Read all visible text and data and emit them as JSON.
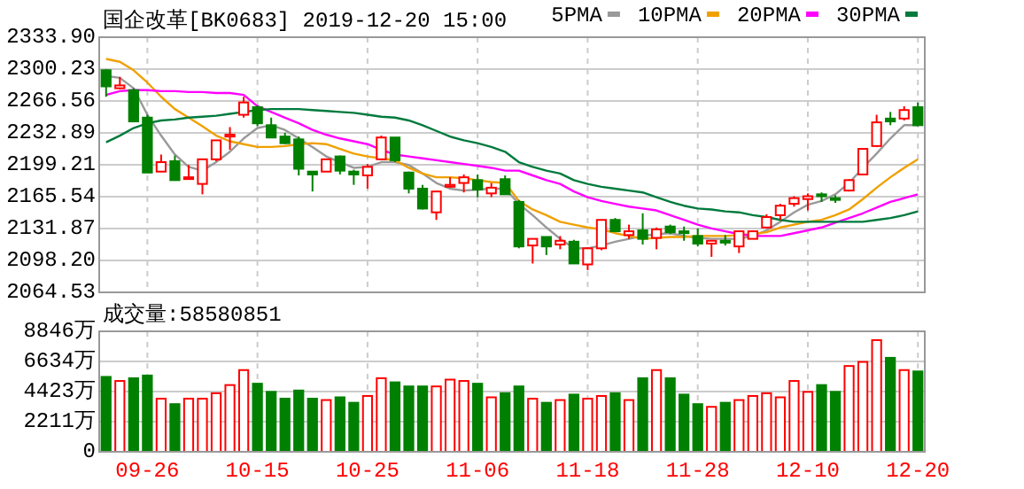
{
  "chart_data": [
    {
      "type": "candlestick",
      "title": "国企改革[BK0683] 2019-12-20 15:00",
      "legend": "top right",
      "grid": true,
      "tick_labels": "y",
      "categories": [
        null,
        null,
        null,
        null,
        null,
        null,
        null,
        null,
        null,
        null,
        null,
        null,
        null,
        null,
        null,
        null,
        null,
        null,
        null,
        null,
        null,
        null,
        null,
        null,
        null,
        null,
        null,
        null,
        null,
        null,
        null,
        null,
        null,
        null,
        null,
        null,
        null,
        null,
        null,
        null,
        null,
        null,
        null,
        null,
        null,
        null,
        null,
        null,
        null,
        null,
        null,
        null,
        null,
        null,
        null,
        null,
        null,
        null,
        null,
        null
      ],
      "ylim": [
        2064.53,
        2333.9
      ],
      "yticks": [
        {
          "value": 2333.9,
          "label": "2333.90"
        },
        2300.23,
        2266.56,
        2232.89,
        2199.21,
        2165.54,
        2131.87,
        {
          "value": 2098.2,
          "label": "2098.20"
        },
        2064.53
      ],
      "ohlc": [
        [
          2299,
          2300,
          2271,
          2282
        ],
        [
          2280,
          2292,
          2279,
          2283
        ],
        [
          2278,
          2280,
          2245,
          2245
        ],
        [
          2249,
          2252,
          2191,
          2191
        ],
        [
          2192,
          2210,
          2192,
          2202
        ],
        [
          2203,
          2209,
          2183,
          2183
        ],
        [
          2185,
          2199,
          2185,
          2186
        ],
        [
          2179,
          2205,
          2168,
          2205
        ],
        [
          2205,
          2225,
          2203,
          2225
        ],
        [
          2229,
          2239,
          2215,
          2231
        ],
        [
          2252,
          2271,
          2249,
          2265
        ],
        [
          2260,
          2262,
          2240,
          2243
        ],
        [
          2241,
          2249,
          2228,
          2228
        ],
        [
          2229,
          2233,
          2221,
          2222
        ],
        [
          2226,
          2229,
          2188,
          2195
        ],
        [
          2192,
          2192,
          2171,
          2189
        ],
        [
          2192,
          2205,
          2192,
          2205
        ],
        [
          2208,
          2209,
          2189,
          2193
        ],
        [
          2192,
          2194,
          2178,
          2189
        ],
        [
          2188,
          2200,
          2174,
          2197
        ],
        [
          2205,
          2230,
          2204,
          2228
        ],
        [
          2228,
          2228,
          2202,
          2204
        ],
        [
          2191,
          2192,
          2169,
          2174
        ],
        [
          2174,
          2178,
          2152,
          2153
        ],
        [
          2149,
          2172,
          2141,
          2171
        ],
        [
          2176,
          2186,
          2175,
          2178
        ],
        [
          2180,
          2189,
          2170,
          2186
        ],
        [
          2183,
          2189,
          2165,
          2173
        ],
        [
          2169,
          2180,
          2165,
          2175
        ],
        [
          2184,
          2188,
          2168,
          2168
        ],
        [
          2160,
          2162,
          2111,
          2113
        ],
        [
          2114,
          2121,
          2095,
          2121
        ],
        [
          2123,
          2123,
          2104,
          2113
        ],
        [
          2115,
          2124,
          2110,
          2119
        ],
        [
          2118,
          2120,
          2095,
          2095
        ],
        [
          2094,
          2112,
          2088,
          2111
        ],
        [
          2111,
          2141,
          2109,
          2141
        ],
        [
          2141,
          2143,
          2129,
          2129
        ],
        [
          2125,
          2136,
          2121,
          2129
        ],
        [
          2130,
          2148,
          2115,
          2121
        ],
        [
          2122,
          2133,
          2110,
          2131
        ],
        [
          2134,
          2136,
          2126,
          2128
        ],
        [
          2129,
          2134,
          2119,
          2127
        ],
        [
          2124,
          2132,
          2113,
          2116
        ],
        [
          2116,
          2119,
          2102,
          2119
        ],
        [
          2119,
          2125,
          2114,
          2117
        ],
        [
          2113,
          2130,
          2106,
          2129
        ],
        [
          2121,
          2130,
          2121,
          2129
        ],
        [
          2133,
          2147,
          2132,
          2144
        ],
        [
          2146,
          2158,
          2141,
          2156
        ],
        [
          2158,
          2166,
          2155,
          2164
        ],
        [
          2163,
          2169,
          2151,
          2166
        ],
        [
          2168,
          2170,
          2160,
          2166
        ],
        [
          2164,
          2167,
          2159,
          2163
        ],
        [
          2172,
          2184,
          2171,
          2183
        ],
        [
          2189,
          2216,
          2188,
          2216
        ],
        [
          2219,
          2252,
          2218,
          2244
        ],
        [
          2248,
          2255,
          2241,
          2245
        ],
        [
          2248,
          2261,
          2246,
          2257
        ],
        [
          2260,
          2265,
          2240,
          2241
        ]
      ],
      "colors": [
        "#008000",
        "#ff0000",
        "#008000",
        "#008000",
        "#ff0000",
        "#008000",
        "#ff0000",
        "#ff0000",
        "#ff0000",
        "#ff0000",
        "#ff0000",
        "#008000",
        "#008000",
        "#008000",
        "#008000",
        "#008000",
        "#ff0000",
        "#008000",
        "#008000",
        "#ff0000",
        "#ff0000",
        "#008000",
        "#008000",
        "#008000",
        "#ff0000",
        "#ff0000",
        "#ff0000",
        "#008000",
        "#ff0000",
        "#008000",
        "#008000",
        "#ff0000",
        "#008000",
        "#ff0000",
        "#008000",
        "#ff0000",
        "#ff0000",
        "#008000",
        "#ff0000",
        "#008000",
        "#ff0000",
        "#008000",
        "#008000",
        "#008000",
        "#ff0000",
        "#008000",
        "#ff0000",
        "#ff0000",
        "#ff0000",
        "#ff0000",
        "#ff0000",
        "#ff0000",
        "#008000",
        "#008000",
        "#ff0000",
        "#ff0000",
        "#ff0000",
        "#008000",
        "#ff0000",
        "#008000"
      ],
      "series": [
        {
          "type": "line",
          "name": "5PMA",
          "color": "#999999",
          "values": [
            2293,
            2291,
            2280,
            2252,
            2230,
            2210,
            2197,
            2193,
            2202,
            2213,
            2227,
            2238,
            2241,
            2236,
            2227,
            2218,
            2208,
            2202,
            2196,
            2197,
            2202,
            2202,
            2199,
            2190,
            2180,
            2174,
            2172,
            2173,
            2174,
            2174,
            2158,
            2146,
            2133,
            2121,
            2111,
            2111,
            2114,
            2118,
            2121,
            2124,
            2126,
            2127,
            2124,
            2122,
            2121,
            2121,
            2121,
            2124,
            2130,
            2139,
            2149,
            2157,
            2161,
            2168,
            2180,
            2196,
            2211,
            2227,
            2241,
            2241
          ]
        },
        {
          "type": "line",
          "name": "10PMA",
          "color": "#f0a000",
          "values": [
            2311,
            2308,
            2299,
            2286,
            2271,
            2258,
            2249,
            2240,
            2230,
            2224,
            2221,
            2218,
            2218,
            2219,
            2221,
            2222,
            2221,
            2216,
            2211,
            2208,
            2206,
            2204,
            2196,
            2190,
            2186,
            2186,
            2185,
            2183,
            2181,
            2180,
            2161,
            2152,
            2146,
            2139,
            2136,
            2133,
            2131,
            2127,
            2124,
            2121,
            2122,
            2123,
            2123,
            2124,
            2124,
            2124,
            2125,
            2126,
            2128,
            2133,
            2136,
            2139,
            2141,
            2146,
            2152,
            2163,
            2175,
            2186,
            2196,
            2205
          ]
        },
        {
          "type": "line",
          "name": "20PMA",
          "color": "#ff00ff",
          "values": [
            2273,
            2277,
            2278,
            2278,
            2277,
            2277,
            2276,
            2276,
            2275,
            2275,
            2273,
            2261,
            2255,
            2249,
            2243,
            2236,
            2231,
            2227,
            2224,
            2221,
            2215,
            2210,
            2208,
            2206,
            2204,
            2202,
            2200,
            2198,
            2196,
            2193,
            2193,
            2188,
            2183,
            2179,
            2171,
            2165,
            2161,
            2158,
            2155,
            2153,
            2151,
            2146,
            2141,
            2136,
            2132,
            2129,
            2126,
            2124,
            2124,
            2124,
            2127,
            2130,
            2133,
            2138,
            2143,
            2148,
            2154,
            2160,
            2164,
            2168
          ]
        },
        {
          "type": "line",
          "name": "30PMA",
          "color": "#007a3d",
          "values": [
            2223,
            2230,
            2238,
            2243,
            2246,
            2247,
            2249,
            2250,
            2251,
            2253,
            2255,
            2257,
            2258,
            2258,
            2258,
            2257,
            2256,
            2255,
            2254,
            2252,
            2250,
            2249,
            2246,
            2241,
            2235,
            2229,
            2225,
            2222,
            2218,
            2213,
            2202,
            2197,
            2193,
            2190,
            2183,
            2179,
            2176,
            2174,
            2172,
            2170,
            2165,
            2160,
            2156,
            2153,
            2152,
            2150,
            2149,
            2146,
            2144,
            2141,
            2139,
            2139,
            2139,
            2139,
            2139,
            2139,
            2141,
            2143,
            2146,
            2150
          ]
        }
      ]
    },
    {
      "type": "bar",
      "title": "成交量:58580851",
      "grid": true,
      "categories": [
        null,
        null,
        null,
        "09-26",
        null,
        null,
        null,
        null,
        null,
        null,
        null,
        "10-15",
        null,
        null,
        null,
        null,
        null,
        null,
        null,
        "10-25",
        null,
        null,
        null,
        null,
        null,
        null,
        null,
        "11-06",
        null,
        null,
        null,
        null,
        null,
        null,
        null,
        "11-18",
        null,
        null,
        null,
        null,
        null,
        null,
        null,
        "11-28",
        null,
        null,
        null,
        null,
        null,
        null,
        null,
        "12-10",
        null,
        null,
        null,
        null,
        null,
        null,
        null,
        "12-20"
      ],
      "ylim": [
        0,
        8846
      ],
      "yticks": [
        0,
        {
          "value": 2211,
          "label": "2211万"
        },
        {
          "value": 4423,
          "label": "4423万"
        },
        {
          "value": 6634,
          "label": "6634万"
        },
        {
          "value": 8846,
          "label": "8846万"
        }
      ],
      "values": [
        5500,
        5200,
        5400,
        5600,
        3900,
        3500,
        3900,
        3900,
        4300,
        4900,
        6000,
        5000,
        4400,
        3900,
        4500,
        3900,
        3800,
        4000,
        3600,
        4100,
        5400,
        5100,
        4800,
        4800,
        4800,
        5300,
        5200,
        5000,
        4000,
        4300,
        4800,
        3900,
        3600,
        3800,
        4200,
        3900,
        4100,
        4300,
        3800,
        5400,
        6000,
        5400,
        4200,
        3500,
        3300,
        3600,
        3800,
        4100,
        4300,
        4000,
        5200,
        4400,
        4900,
        4400,
        6300,
        6600,
        8200,
        6900,
        6000,
        5900
      ],
      "colors": [
        "#008000",
        "#ff0000",
        "#008000",
        "#008000",
        "#ff0000",
        "#008000",
        "#ff0000",
        "#ff0000",
        "#ff0000",
        "#ff0000",
        "#ff0000",
        "#008000",
        "#008000",
        "#008000",
        "#008000",
        "#008000",
        "#ff0000",
        "#008000",
        "#008000",
        "#ff0000",
        "#ff0000",
        "#008000",
        "#008000",
        "#008000",
        "#ff0000",
        "#ff0000",
        "#ff0000",
        "#008000",
        "#ff0000",
        "#008000",
        "#008000",
        "#ff0000",
        "#008000",
        "#ff0000",
        "#008000",
        "#ff0000",
        "#ff0000",
        "#008000",
        "#ff0000",
        "#008000",
        "#ff0000",
        "#008000",
        "#008000",
        "#008000",
        "#ff0000",
        "#008000",
        "#ff0000",
        "#ff0000",
        "#ff0000",
        "#ff0000",
        "#ff0000",
        "#ff0000",
        "#008000",
        "#008000",
        "#ff0000",
        "#ff0000",
        "#ff0000",
        "#008000",
        "#ff0000",
        "#008000"
      ]
    }
  ]
}
